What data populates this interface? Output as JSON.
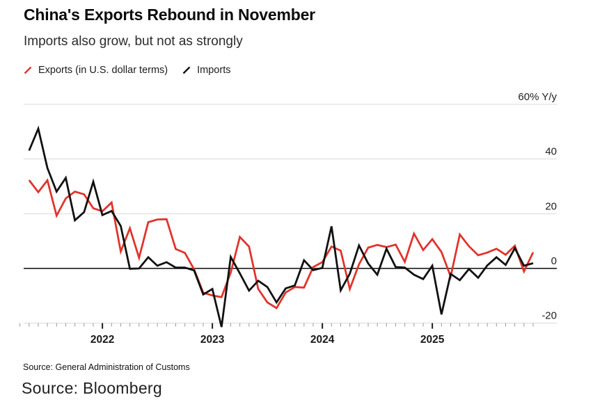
{
  "header": {
    "title": "China's Exports Rebound in November",
    "subtitle": "Imports also grow, but not as strongly"
  },
  "legend": [
    {
      "label": "Exports (in U.S. dollar terms)",
      "color": "#e0342c"
    },
    {
      "label": "Imports",
      "color": "#111111"
    }
  ],
  "footer": {
    "source_line": "Source: General Administration of Customs",
    "credit": "Source: Bloomberg"
  },
  "colors": {
    "exports_red": "#e0342c",
    "imports_black": "#111111",
    "gridline": "#d9d9d9",
    "zero_line": "#454545",
    "axis_text": "#1f1f1f",
    "background": "#ffffff"
  },
  "chart_data": {
    "type": "line",
    "title": "China's Exports Rebound in November",
    "subtitle": "Imports also grow, but not as strongly",
    "ylabel": "% Y/y",
    "ylim": [
      -25,
      62
    ],
    "yticks": [
      60,
      40,
      20,
      0,
      -20
    ],
    "ytick_labels": [
      "60% Y/y",
      "40",
      "20",
      "0",
      "-20"
    ],
    "year_ticks": [
      "2022",
      "2023",
      "2024",
      "2025"
    ],
    "grid": true,
    "legend_position": "top-left",
    "x_unit": "month",
    "x": [
      "2021-04",
      "2021-05",
      "2021-06",
      "2021-07",
      "2021-08",
      "2021-09",
      "2021-10",
      "2021-11",
      "2021-12",
      "2022-01",
      "2022-02",
      "2022-03",
      "2022-04",
      "2022-05",
      "2022-06",
      "2022-07",
      "2022-08",
      "2022-09",
      "2022-10",
      "2022-11",
      "2022-12",
      "2023-01",
      "2023-02",
      "2023-03",
      "2023-04",
      "2023-05",
      "2023-06",
      "2023-07",
      "2023-08",
      "2023-09",
      "2023-10",
      "2023-11",
      "2023-12",
      "2024-01",
      "2024-02",
      "2024-03",
      "2024-04",
      "2024-05",
      "2024-06",
      "2024-07",
      "2024-08",
      "2024-09",
      "2024-10",
      "2024-11",
      "2024-12",
      "2025-01",
      "2025-02",
      "2025-03",
      "2025-04",
      "2025-05",
      "2025-06",
      "2025-07",
      "2025-08",
      "2025-09",
      "2025-10",
      "2025-11"
    ],
    "series": [
      {
        "name": "Exports (in U.S. dollar terms)",
        "color": "#e0342c",
        "values": [
          32.3,
          27.9,
          32.2,
          19.3,
          25.6,
          28.1,
          27.1,
          22.0,
          20.9,
          24.1,
          6.2,
          14.7,
          3.9,
          16.9,
          17.9,
          18.0,
          7.1,
          5.7,
          -0.3,
          -8.9,
          -9.9,
          -10.5,
          -1.5,
          11.5,
          8.0,
          -7.5,
          -12.4,
          -14.5,
          -8.8,
          -6.8,
          -7.0,
          0.5,
          2.3,
          8.0,
          6.5,
          -7.5,
          1.5,
          7.6,
          8.6,
          7.8,
          8.7,
          2.4,
          12.7,
          6.7,
          10.7,
          6.0,
          -3.0,
          12.4,
          8.1,
          4.8,
          5.8,
          7.2,
          5.0,
          8.3,
          -1.1,
          5.9
        ]
      },
      {
        "name": "Imports",
        "color": "#111111",
        "values": [
          43.1,
          51.1,
          36.7,
          28.1,
          33.1,
          17.6,
          20.6,
          31.7,
          19.5,
          21.0,
          15.5,
          -0.1,
          0.0,
          4.1,
          1.0,
          2.3,
          0.3,
          0.3,
          -0.7,
          -9.5,
          -7.5,
          -21.4,
          4.2,
          -1.8,
          -8.1,
          -4.5,
          -6.8,
          -12.4,
          -7.3,
          -6.2,
          3.0,
          -0.6,
          0.2,
          15.4,
          -8.0,
          -1.9,
          8.4,
          1.8,
          -2.3,
          7.2,
          0.5,
          0.3,
          -2.3,
          -3.9,
          1.0,
          -16.8,
          -2.0,
          -4.3,
          -0.2,
          -3.4,
          1.1,
          4.1,
          1.3,
          7.4,
          1.0,
          1.9
        ]
      }
    ]
  }
}
